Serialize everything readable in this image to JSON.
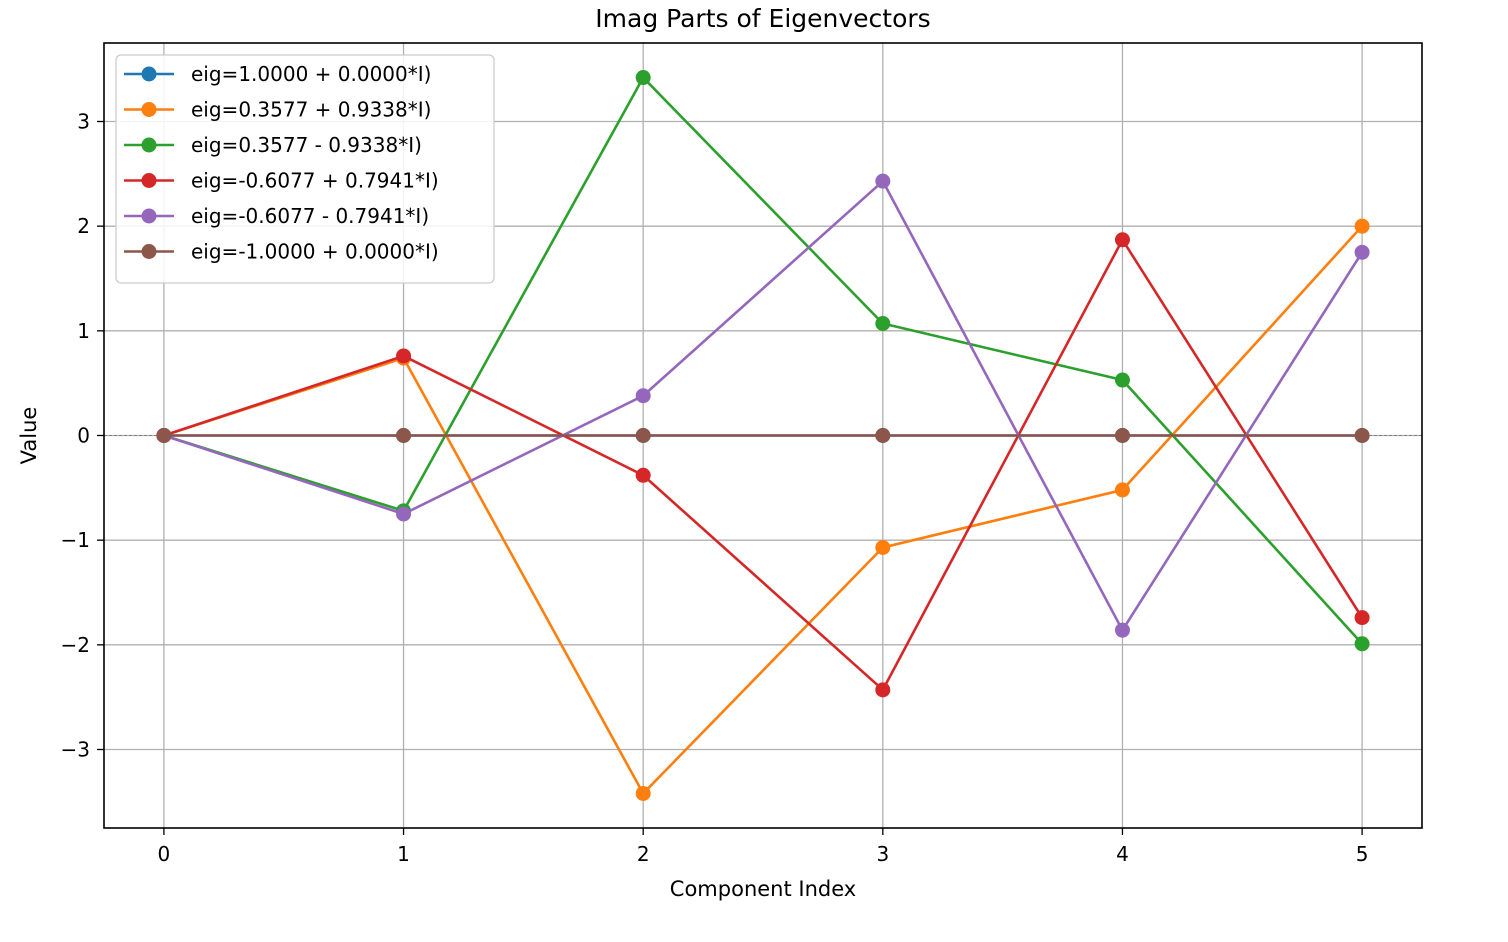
{
  "chart_data": {
    "type": "line",
    "title": "Imag Parts of Eigenvectors",
    "xlabel": "Component Index",
    "ylabel": "Value",
    "xlim": [
      -0.25,
      5.25
    ],
    "ylim": [
      -3.75,
      3.75
    ],
    "x": [
      0,
      1,
      2,
      3,
      4,
      5
    ],
    "xticks": [
      0,
      1,
      2,
      3,
      4,
      5
    ],
    "xtick_labels": [
      "0",
      "1",
      "2",
      "3",
      "4",
      "5"
    ],
    "yticks": [
      -3,
      -2,
      -1,
      0,
      1,
      2,
      3
    ],
    "ytick_labels": [
      "−3",
      "−2",
      "−1",
      "0",
      "1",
      "2",
      "3"
    ],
    "grid": true,
    "legend_position": "top-left",
    "series": [
      {
        "name": "eig=1.0000 + 0.0000*I)",
        "color": "#1f77b4",
        "values": [
          0,
          0,
          0,
          0,
          0,
          0
        ]
      },
      {
        "name": "eig=0.3577 + 0.9338*I)",
        "color": "#ff7f0e",
        "values": [
          0,
          0.74,
          -3.42,
          -1.07,
          -0.52,
          2.0
        ]
      },
      {
        "name": "eig=0.3577 - 0.9338*I)",
        "color": "#2ca02c",
        "values": [
          0,
          -0.72,
          3.42,
          1.07,
          0.53,
          -1.99
        ]
      },
      {
        "name": "eig=-0.6077 + 0.7941*I)",
        "color": "#d62728",
        "values": [
          0,
          0.76,
          -0.38,
          -2.43,
          1.87,
          -1.74
        ]
      },
      {
        "name": "eig=-0.6077 - 0.7941*I)",
        "color": "#9467bd",
        "values": [
          0,
          -0.75,
          0.38,
          2.43,
          -1.86,
          1.75
        ]
      },
      {
        "name": "eig=-1.0000 + 0.0000*I)",
        "color": "#8c564b",
        "values": [
          0,
          0,
          0,
          0,
          0,
          0
        ]
      }
    ]
  }
}
